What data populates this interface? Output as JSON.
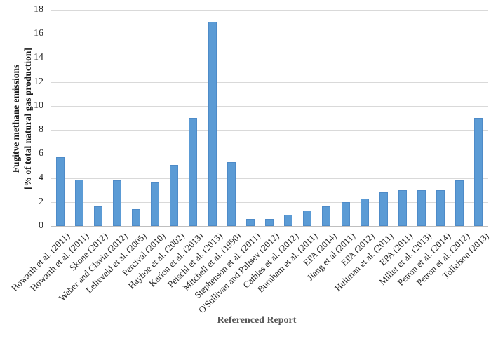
{
  "chart_data": {
    "type": "bar",
    "title": "",
    "xlabel": "Referenced Report",
    "ylabel_lines": [
      "Fugitve methane emissions",
      "[% of total natural gas production]"
    ],
    "ylim": [
      0,
      18
    ],
    "yticks": [
      0,
      2,
      4,
      6,
      8,
      10,
      12,
      14,
      16,
      18
    ],
    "grid": "horizontal-on",
    "legend": "none",
    "categories": [
      "Howarth et al. (2011)",
      "Howarth et al. (2011)",
      "Skone (2012)",
      "Weber and Clavin (2012)",
      "Lelieveld et al. (2005)",
      "Percival (2010)",
      "Hayhoe et al. (2002)",
      "Karion et al. (2013)",
      "Peischl et al. (2013)",
      "Mitchell et al. (1990)",
      "Stephenson et al. (2011)",
      "O'Sullivan and Paltsev (2012)",
      "Cathles et al. (2012)",
      "Burnham et al. (2011)",
      "EPA (2014)",
      "Jiang et al (2011)",
      "EPA (2012)",
      "Hultman et al. (2011)",
      "EPA (2011)",
      "Miller et al. (2013)",
      "Petron et al. (2014)",
      "Petron et al. (2012)",
      "Tollefson (2013)"
    ],
    "values": [
      5.75,
      3.85,
      1.65,
      3.8,
      1.4,
      3.6,
      5.1,
      9.0,
      17.0,
      5.3,
      0.6,
      0.6,
      0.95,
      1.3,
      1.65,
      2.0,
      2.3,
      2.8,
      3.0,
      3.0,
      3.0,
      3.8,
      9.0
    ],
    "colors": {
      "bar_fill": "#5B9BD5",
      "bar_border": "#4E8BC8",
      "gridline": "#D9D9D9",
      "axis_line": "#BFBFBF",
      "tick_text": "#262626",
      "x_title_text": "#595959"
    }
  }
}
